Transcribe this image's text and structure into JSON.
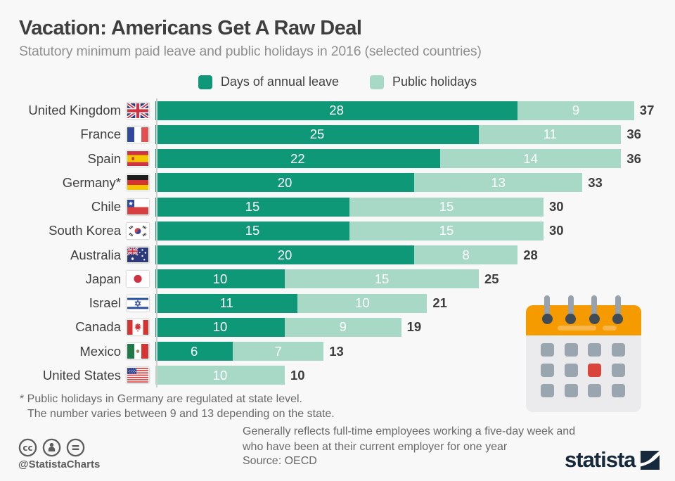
{
  "header": {
    "title": "Vacation: Americans Get A Raw Deal",
    "subtitle": "Statutory minimum paid leave and public holidays in 2016 (selected countries)"
  },
  "legend": {
    "annual_leave": "Days of annual leave",
    "public_holidays": "Public holidays"
  },
  "chart_data": {
    "type": "bar",
    "orientation": "horizontal",
    "stacked": true,
    "title": "Vacation: Americans Get A Raw Deal",
    "subtitle": "Statutory minimum paid leave and public holidays in 2016 (selected countries)",
    "categories": [
      "United Kingdom",
      "France",
      "Spain",
      "Germany*",
      "Chile",
      "South Korea",
      "Australia",
      "Japan",
      "Israel",
      "Canada",
      "Mexico",
      "United States"
    ],
    "flags": [
      "gb",
      "fr",
      "es",
      "de",
      "cl",
      "kr",
      "au",
      "jp",
      "il",
      "ca",
      "mx",
      "us"
    ],
    "series": [
      {
        "name": "Days of annual leave",
        "color": "#0f9878",
        "values": [
          28,
          25,
          22,
          20,
          15,
          15,
          20,
          10,
          11,
          10,
          6,
          0
        ]
      },
      {
        "name": "Public holidays",
        "color": "#a8d9c7",
        "values": [
          9,
          11,
          14,
          13,
          15,
          15,
          8,
          15,
          10,
          9,
          7,
          10
        ]
      }
    ],
    "totals": [
      37,
      36,
      36,
      33,
      30,
      30,
      28,
      25,
      21,
      19,
      13,
      10
    ],
    "xlim": [
      0,
      37
    ],
    "value_labels": "white, centered inside segments",
    "total_labels": "bold, right of bar",
    "legend_position": "top center",
    "grid": false
  },
  "footnote": {
    "line1": "* Public holidays in Germany are regulated at state level.",
    "line2": "The number varies between 9 and 13 depending on the state."
  },
  "note": {
    "line1": "Generally reflects full-time employees working a five-day week and",
    "line2": "who have been at their current employer for one year",
    "source": "Source: OECD"
  },
  "branding": {
    "handle": "@StatistaCharts",
    "logo_text": "statista"
  },
  "colors": {
    "annual_leave": "#0f9878",
    "public_holidays": "#a8d9c7",
    "background": "#f8f8f8",
    "calendar_orange": "#f59b00",
    "calendar_red": "#d9453b",
    "logo_navy": "#16283c"
  }
}
